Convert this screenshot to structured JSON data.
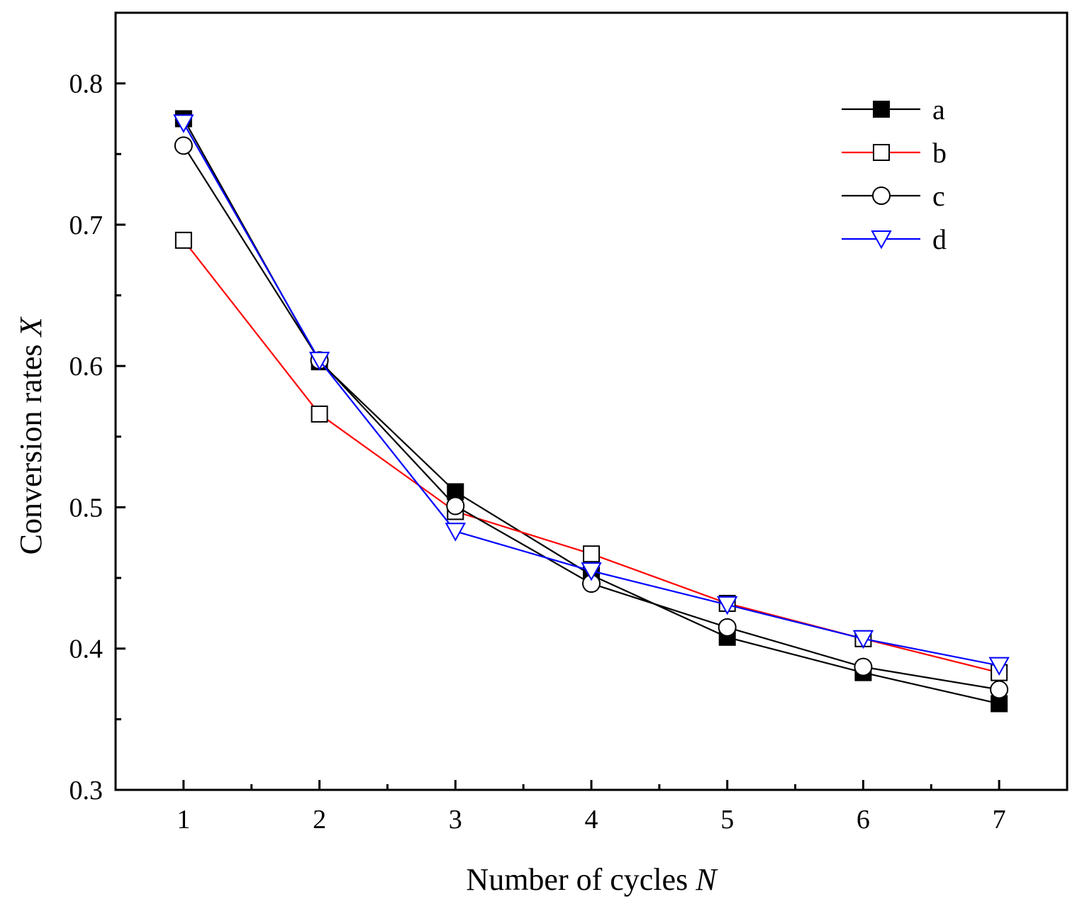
{
  "chart_data": {
    "type": "line",
    "title": "",
    "xlabel": "Number of cycles",
    "xlabel_var": "N",
    "ylabel": "Conversion rates",
    "ylabel_var": "X",
    "x": [
      1,
      2,
      3,
      4,
      5,
      6,
      7
    ],
    "xlim": [
      0.5,
      7.5
    ],
    "ylim": [
      0.3,
      0.85
    ],
    "xticks": [
      1,
      2,
      3,
      4,
      5,
      6,
      7
    ],
    "xtick_labels": [
      "1",
      "2",
      "3",
      "4",
      "5",
      "6",
      "7"
    ],
    "yticks": [
      0.3,
      0.4,
      0.5,
      0.6,
      0.7,
      0.8
    ],
    "ytick_labels": [
      "0.3",
      "0.4",
      "0.5",
      "0.6",
      "0.7",
      "0.8"
    ],
    "grid": false,
    "legend_position": "top-right",
    "series": [
      {
        "name": "a",
        "color": "#000000",
        "marker": "square-filled",
        "values": [
          0.775,
          0.603,
          0.511,
          0.452,
          0.408,
          0.383,
          0.361
        ]
      },
      {
        "name": "b",
        "color": "#ff0000",
        "marker": "square-open",
        "values": [
          0.689,
          0.566,
          0.497,
          0.467,
          0.432,
          0.407,
          0.383
        ]
      },
      {
        "name": "c",
        "color": "#000000",
        "marker": "circle-open",
        "values": [
          0.756,
          0.604,
          0.501,
          0.446,
          0.415,
          0.387,
          0.371
        ]
      },
      {
        "name": "d",
        "color": "#0000ff",
        "marker": "triangle-down-open",
        "values": [
          0.772,
          0.604,
          0.483,
          0.455,
          0.431,
          0.407,
          0.388
        ]
      }
    ]
  }
}
